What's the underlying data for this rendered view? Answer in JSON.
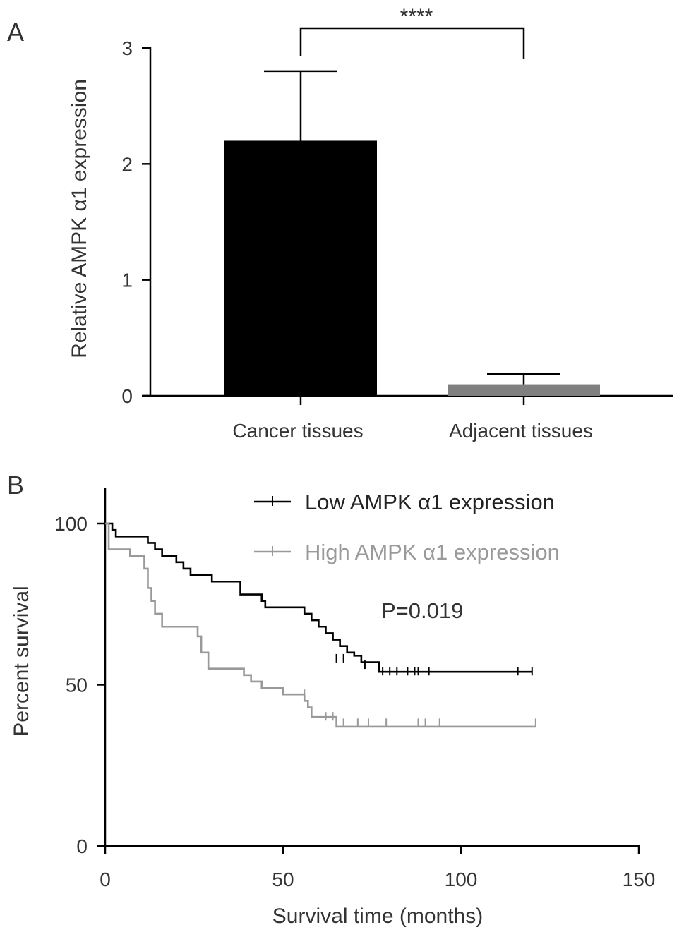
{
  "chart_data": [
    {
      "panel": "A",
      "type": "bar",
      "ylabel": "Relative AMPK α1 expression",
      "xlabel": "",
      "ylim": [
        0,
        3
      ],
      "yticks": [
        0,
        1,
        2,
        3
      ],
      "ytick_labels": [
        "0",
        "1",
        "2",
        "3"
      ],
      "categories": [
        "Cancer tissues",
        "Adjacent tissues"
      ],
      "values": [
        2.2,
        0.1
      ],
      "error": [
        0.6,
        0.09
      ],
      "colors": [
        "#000000",
        "#808080"
      ],
      "significance": "****"
    },
    {
      "panel": "B",
      "type": "line",
      "subtype": "kaplan-meier",
      "xlabel": "Survival time (months)",
      "ylabel": "Percent survival",
      "xlim": [
        0,
        150
      ],
      "ylim": [
        0,
        100
      ],
      "xticks": [
        0,
        50,
        100,
        150
      ],
      "xtick_labels": [
        "0",
        "50",
        "100",
        "150"
      ],
      "yticks": [
        0,
        50,
        100
      ],
      "ytick_labels": [
        "0",
        "50",
        "100"
      ],
      "legend_position": "top-right",
      "annotation": "P=0.019",
      "series": [
        {
          "name": "Low AMPK α1 expression",
          "color": "#000000",
          "steps": [
            [
              0,
              100
            ],
            [
              2,
              98
            ],
            [
              3,
              96
            ],
            [
              12,
              94
            ],
            [
              14,
              92
            ],
            [
              16,
              90
            ],
            [
              20,
              88
            ],
            [
              22,
              86
            ],
            [
              24,
              84
            ],
            [
              30,
              82
            ],
            [
              38,
              78
            ],
            [
              44,
              76
            ],
            [
              45,
              74
            ],
            [
              56,
              72
            ],
            [
              58,
              70
            ],
            [
              60,
              68
            ],
            [
              62,
              66
            ],
            [
              64,
              64
            ],
            [
              66,
              62
            ],
            [
              68,
              60
            ],
            [
              70,
              59
            ],
            [
              72,
              57
            ],
            [
              74,
              57
            ],
            [
              77,
              54
            ],
            [
              120,
              54
            ]
          ],
          "censored": [
            [
              65,
              58
            ],
            [
              67,
              58
            ],
            [
              73,
              56
            ],
            [
              78,
              54
            ],
            [
              80,
              54
            ],
            [
              82,
              54
            ],
            [
              85,
              54
            ],
            [
              87,
              54
            ],
            [
              88,
              54
            ],
            [
              91,
              54
            ],
            [
              116,
              54
            ],
            [
              120,
              54
            ]
          ]
        },
        {
          "name": "High AMPK α1 expression",
          "color": "#999999",
          "steps": [
            [
              0,
              100
            ],
            [
              1,
              92
            ],
            [
              7,
              90
            ],
            [
              11,
              86
            ],
            [
              12,
              80
            ],
            [
              13,
              76
            ],
            [
              14,
              72
            ],
            [
              16,
              68
            ],
            [
              26,
              65
            ],
            [
              27,
              60
            ],
            [
              29,
              55
            ],
            [
              39,
              53
            ],
            [
              41,
              51
            ],
            [
              44,
              49
            ],
            [
              50,
              47
            ],
            [
              56,
              45
            ],
            [
              57,
              43
            ],
            [
              58,
              40
            ],
            [
              65,
              37
            ],
            [
              121,
              37
            ]
          ],
          "censored": [
            [
              56,
              47
            ],
            [
              62,
              40
            ],
            [
              64,
              40
            ],
            [
              67,
              38
            ],
            [
              71,
              38
            ],
            [
              74,
              38
            ],
            [
              79,
              38
            ],
            [
              88,
              38
            ],
            [
              90,
              38
            ],
            [
              94,
              38
            ],
            [
              121,
              38
            ]
          ]
        }
      ]
    }
  ]
}
